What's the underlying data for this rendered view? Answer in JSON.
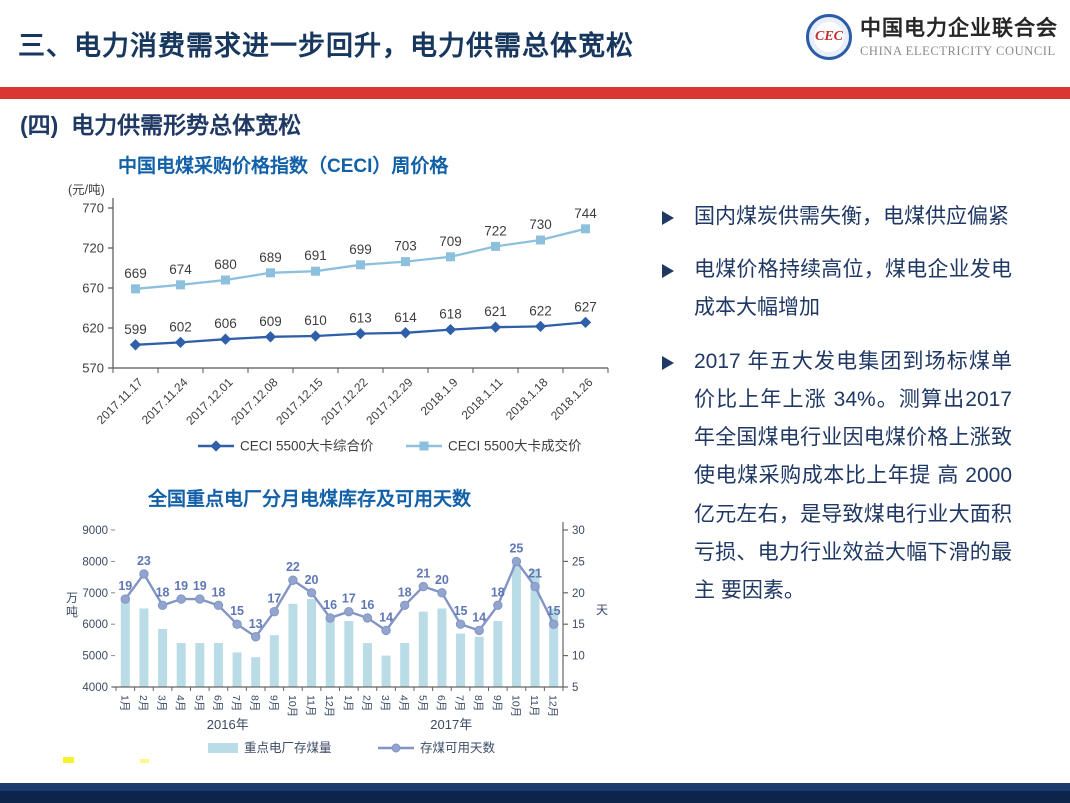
{
  "header": {
    "title": "三、电力消费需求进一步回升，电力供需总体宽松"
  },
  "logo": {
    "emblem_text": "CEC",
    "name_cn": "中国电力企业联合会",
    "name_en": "CHINA ELECTRICITY COUNCIL"
  },
  "colors": {
    "accent_red": "#D93732",
    "navy_text": "#1F3864",
    "title_blue": "#1160A8",
    "footer_navy": "#0D2548",
    "highlight_yellow": "#F5F32E"
  },
  "section_title": "(四)  电力供需形势总体宽松",
  "bullets": [
    {
      "text": "国内煤炭供需失衡，电煤供应偏紧"
    },
    {
      "text": "电煤价格持续高位，煤电企业发电成本大幅增加"
    },
    {
      "text": "2017 年五大发电集团到场标煤单价比上年上涨 34%。测算出2017 年全国煤电行业因电煤价格上涨致使电煤采购成本比上年提 高 2000 亿元左右，是导致煤电行业大面积亏损、电力行业效益大幅下滑的最主 要因素。"
    }
  ],
  "chart_data": [
    {
      "type": "line",
      "title": "中国电煤采购价格指数（CECI）周价格",
      "ylabel": "(元/吨)",
      "ylim": [
        570,
        770
      ],
      "yticks": [
        770,
        720,
        670,
        620,
        570
      ],
      "grid": false,
      "legend_position": "bottom",
      "x": [
        "2017.11.17",
        "2017.11.24",
        "2017.12.01",
        "2017.12.08",
        "2017.12.15",
        "2017.12.22",
        "2017.12.29",
        "2018.1.9",
        "2018.1.11",
        "2018.1.18",
        "2018.1.26"
      ],
      "series": [
        {
          "name": "CECI 5500大卡综合价",
          "color": "#2E5FA8",
          "marker": "diamond",
          "values": [
            599,
            602,
            606,
            609,
            610,
            613,
            614,
            618,
            621,
            622,
            627
          ]
        },
        {
          "name": "CECI 5500大卡成交价",
          "color": "#8CC0DC",
          "marker": "square",
          "values": [
            669,
            674,
            680,
            689,
            691,
            699,
            703,
            709,
            722,
            730,
            744
          ]
        }
      ],
      "label_color": "#3D3D3D"
    },
    {
      "type": "bar+line",
      "title": "全国重点电厂分月电煤库存及可用天数",
      "ylabel_left": "万吨",
      "ylabel_right": "天",
      "ylim_left": [
        4000,
        9000
      ],
      "ylim_right": [
        5,
        30
      ],
      "yticks_left": [
        9000,
        8000,
        7000,
        6000,
        5000,
        4000
      ],
      "yticks_right": [
        30,
        25,
        20,
        15,
        10,
        5
      ],
      "grid": false,
      "legend_position": "bottom",
      "categories": [
        "1月",
        "2月",
        "3月",
        "4月",
        "5月",
        "6月",
        "7月",
        "8月",
        "9月",
        "10月",
        "11月",
        "12月",
        "1月",
        "2月",
        "3月",
        "4月",
        "5月",
        "6月",
        "7月",
        "8月",
        "9月",
        "10月",
        "11月",
        "12月"
      ],
      "year_groups": [
        "2016年",
        "2017年"
      ],
      "bar_series": {
        "name": "重点电厂存煤量",
        "color": "#B9DCE7",
        "axis": "left",
        "values": [
          6800,
          6500,
          5850,
          5400,
          5400,
          5400,
          5100,
          4950,
          5650,
          6650,
          6800,
          6200,
          6100,
          5400,
          5000,
          5400,
          6400,
          6500,
          5700,
          5600,
          6100,
          7900,
          7750,
          6500
        ]
      },
      "line_series": {
        "name": "存煤可用天数",
        "color": "#8295C5",
        "marker_fill": "#93A4CE",
        "axis": "right",
        "values": [
          19,
          23,
          18,
          19,
          19,
          18,
          15,
          13,
          17,
          22,
          20,
          16,
          17,
          16,
          14,
          18,
          21,
          20,
          15,
          14,
          18,
          25,
          21,
          15
        ]
      },
      "label_color": "#5F78B4",
      "axis_text_color": "#3A4A63"
    }
  ]
}
